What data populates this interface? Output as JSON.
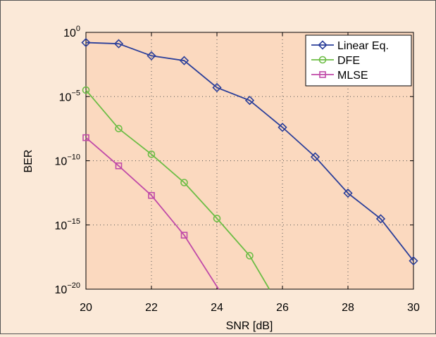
{
  "chart_data": {
    "type": "line",
    "xlabel": "SNR [dB]",
    "ylabel": "BER",
    "xlim": [
      20,
      30
    ],
    "ylim_exponent": [
      -20,
      0
    ],
    "yscale": "log",
    "grid": true,
    "legend_position": "top-right",
    "x_ticks": [
      "20",
      "22",
      "24",
      "26",
      "28",
      "30"
    ],
    "y_ticks": [
      {
        "base": "10",
        "exp": "0",
        "value": 1
      },
      {
        "base": "10",
        "exp": "−5",
        "value": 1e-05
      },
      {
        "base": "10",
        "exp": "−10",
        "value": 1e-10
      },
      {
        "base": "10",
        "exp": "−15",
        "value": 1e-15
      },
      {
        "base": "10",
        "exp": "−20",
        "value": 1e-20
      }
    ],
    "series": [
      {
        "name": "Linear Eq.",
        "color": "#2b3f9a",
        "marker": "diamond",
        "x": [
          20,
          21,
          22,
          23,
          24,
          25,
          26,
          27,
          28,
          29,
          30
        ],
        "y": [
          0.16,
          0.13,
          0.015,
          0.0063,
          5e-05,
          5e-06,
          4e-08,
          2e-10,
          3e-13,
          3e-15,
          1.6e-18
        ]
      },
      {
        "name": "DFE",
        "color": "#6cbd45",
        "marker": "circle",
        "x": [
          20,
          21,
          22,
          23,
          24,
          25,
          25.6
        ],
        "y": [
          3.2e-05,
          3.2e-08,
          3.2e-10,
          2e-12,
          3.2e-15,
          4e-18,
          1e-20
        ]
      },
      {
        "name": "MLSE",
        "color": "#c04aa8",
        "marker": "square",
        "x": [
          20,
          21,
          22,
          23,
          24.05
        ],
        "y": [
          6.3e-09,
          4e-11,
          2e-13,
          1.6e-16,
          1e-20
        ]
      }
    ]
  },
  "colors": {
    "plot_bg": "#fbd9bf",
    "page_bg": "#fbe9d8",
    "grid": "#555555"
  }
}
